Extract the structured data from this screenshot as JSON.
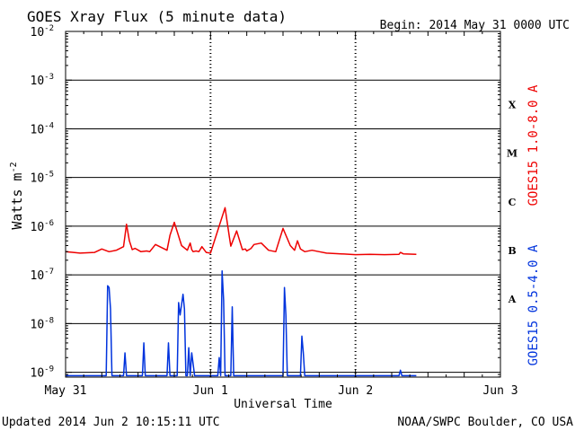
{
  "chart_data": {
    "type": "line",
    "title": "GOES Xray Flux (5 minute data)",
    "begin_text": "Begin:  2014 May 31 0000 UTC",
    "xlabel": "Universal Time",
    "ylabel_base": "Watts m",
    "ylabel_exp": "-2",
    "x_ticks": [
      "May 31",
      "Jun 1",
      "Jun 2",
      "Jun 3"
    ],
    "xlim_days": [
      0,
      3
    ],
    "ylim_log10": [
      -9.1,
      -2
    ],
    "y_ticks": [
      {
        "base": "10",
        "exp": "-2",
        "log": -2
      },
      {
        "base": "10",
        "exp": "-3",
        "log": -3
      },
      {
        "base": "10",
        "exp": "-4",
        "log": -4
      },
      {
        "base": "10",
        "exp": "-5",
        "log": -5
      },
      {
        "base": "10",
        "exp": "-6",
        "log": -6
      },
      {
        "base": "10",
        "exp": "-7",
        "log": -7
      },
      {
        "base": "10",
        "exp": "-8",
        "log": -8
      },
      {
        "base": "10",
        "exp": "-9",
        "log": -9
      }
    ],
    "flare_classes": [
      {
        "label": "X",
        "log": -3.5
      },
      {
        "label": "M",
        "log": -4.5
      },
      {
        "label": "C",
        "log": -5.5
      },
      {
        "label": "B",
        "log": -6.5
      },
      {
        "label": "A",
        "log": -7.5
      }
    ],
    "grid": true,
    "series": [
      {
        "name": "GOES15 1.0-8.0 A",
        "color": "#ee0000",
        "x": [
          0.0,
          0.1,
          0.2,
          0.25,
          0.3,
          0.35,
          0.4,
          0.42,
          0.44,
          0.46,
          0.48,
          0.52,
          0.56,
          0.58,
          0.62,
          0.7,
          0.72,
          0.75,
          0.8,
          0.84,
          0.86,
          0.87,
          0.88,
          0.9,
          0.92,
          0.94,
          0.97,
          1.0,
          1.1,
          1.13,
          1.14,
          1.18,
          1.22,
          1.24,
          1.25,
          1.28,
          1.3,
          1.35,
          1.4,
          1.45,
          1.5,
          1.55,
          1.58,
          1.6,
          1.62,
          1.65,
          1.7,
          1.75,
          1.8,
          1.9,
          2.0,
          2.1,
          2.2,
          2.3,
          2.31,
          2.33,
          2.42
        ],
        "y": [
          3e-07,
          2.8e-07,
          2.9e-07,
          3.4e-07,
          3e-07,
          3.2e-07,
          3.8e-07,
          1.1e-06,
          5e-07,
          3.3e-07,
          3.5e-07,
          3e-07,
          3.1e-07,
          3e-07,
          4.2e-07,
          3.2e-07,
          6.5e-07,
          1.2e-06,
          4e-07,
          3.2e-07,
          4.5e-07,
          3.3e-07,
          3e-07,
          3.1e-07,
          3e-07,
          3.8e-07,
          2.9e-07,
          2.8e-07,
          2.4e-06,
          6e-07,
          3.9e-07,
          8e-07,
          3.3e-07,
          3.4e-07,
          3.1e-07,
          3.5e-07,
          4.2e-07,
          4.5e-07,
          3.2e-07,
          3e-07,
          9e-07,
          4e-07,
          3.2e-07,
          5e-07,
          3.4e-07,
          3e-07,
          3.2e-07,
          3e-07,
          2.8e-07,
          2.7e-07,
          2.6e-07,
          2.65e-07,
          2.6e-07,
          2.65e-07,
          2.9e-07,
          2.7e-07,
          2.65e-07
        ]
      },
      {
        "name": "GOES15 0.5-4.0 A",
        "color": "#0033dd",
        "x": [
          0.0,
          0.28,
          0.29,
          0.3,
          0.31,
          0.32,
          0.33,
          0.4,
          0.41,
          0.42,
          0.43,
          0.44,
          0.45,
          0.53,
          0.54,
          0.55,
          0.7,
          0.71,
          0.72,
          0.77,
          0.78,
          0.79,
          0.81,
          0.82,
          0.83,
          0.84,
          0.85,
          0.86,
          0.87,
          0.89,
          0.9,
          0.91,
          0.92,
          1.0,
          1.05,
          1.06,
          1.07,
          1.08,
          1.09,
          1.1,
          1.12,
          1.13,
          1.14,
          1.15,
          1.16,
          1.17,
          1.18,
          1.2,
          1.5,
          1.51,
          1.52,
          1.53,
          1.54,
          1.55,
          1.62,
          1.63,
          1.64,
          1.65,
          1.66,
          2.0,
          2.3,
          2.31,
          2.32,
          2.42
        ],
        "y": [
          8.5e-10,
          8.5e-10,
          6e-08,
          5.5e-08,
          2e-08,
          8.5e-10,
          8.5e-10,
          8.5e-10,
          2.5e-09,
          8.5e-10,
          8.5e-10,
          8.5e-10,
          8.5e-10,
          8.5e-10,
          4e-09,
          8.5e-10,
          8.5e-10,
          4e-09,
          8.5e-10,
          8.5e-10,
          2.7e-08,
          1.5e-08,
          4e-08,
          2e-08,
          8.5e-10,
          8.5e-10,
          3.2e-09,
          8.5e-10,
          2.5e-09,
          8.5e-10,
          8.5e-10,
          8.5e-10,
          8.5e-10,
          8.5e-10,
          8.5e-10,
          2e-09,
          8.5e-10,
          1.2e-07,
          3e-08,
          8.5e-10,
          8.5e-10,
          8.5e-10,
          8.5e-10,
          2.2e-08,
          8.5e-10,
          8.5e-10,
          8.5e-10,
          8.5e-10,
          8.5e-10,
          5.5e-08,
          1.5e-08,
          8.5e-10,
          8.5e-10,
          8.5e-10,
          8.5e-10,
          5.5e-09,
          2.5e-09,
          8.5e-10,
          8.5e-10,
          8.5e-10,
          8.5e-10,
          1.1e-09,
          8.5e-10,
          8.5e-10
        ]
      }
    ]
  },
  "footer": {
    "updated": "Updated 2014 Jun  2 10:15:11 UTC",
    "credit": "NOAA/SWPC Boulder, CO USA"
  }
}
